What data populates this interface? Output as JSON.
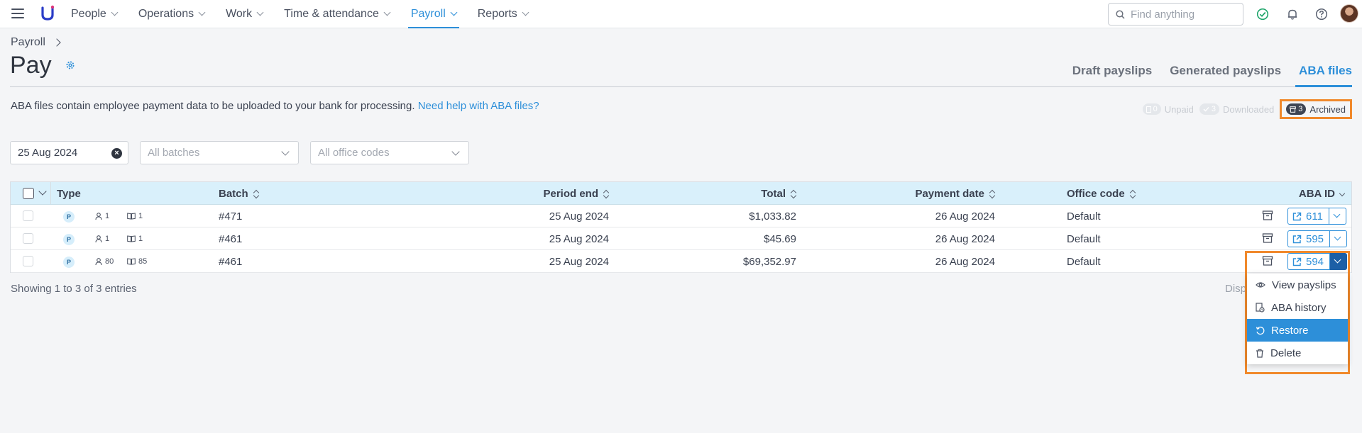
{
  "nav": {
    "items": [
      {
        "label": "People",
        "active": false
      },
      {
        "label": "Operations",
        "active": false
      },
      {
        "label": "Work",
        "active": false
      },
      {
        "label": "Time & attendance",
        "active": false
      },
      {
        "label": "Payroll",
        "active": true
      },
      {
        "label": "Reports",
        "active": false
      }
    ],
    "search_placeholder": "Find anything",
    "accent": "#2d8fd9"
  },
  "header": {
    "breadcrumb": "Payroll",
    "title": "Pay",
    "tabs": [
      {
        "label": "Draft payslips",
        "active": false
      },
      {
        "label": "Generated payslips",
        "active": false
      },
      {
        "label": "ABA files",
        "active": true
      }
    ]
  },
  "description": {
    "text": "ABA files contain employee payment data to be uploaded to your bank for processing. ",
    "link": "Need help with ABA files?"
  },
  "status": {
    "unpaid": {
      "count": "0",
      "label": "Unpaid"
    },
    "downloaded": {
      "count": "3",
      "label": "Downloaded"
    },
    "archived": {
      "count": "3",
      "label": "Archived"
    }
  },
  "filters": {
    "date": "25 Aug 2024",
    "batches_placeholder": "All batches",
    "office_codes_placeholder": "All office codes"
  },
  "table": {
    "headers": {
      "type": "Type",
      "batch": "Batch",
      "period_end": "Period end",
      "total": "Total",
      "payment_date": "Payment date",
      "office_code": "Office code",
      "aba_id": "ABA ID"
    },
    "rows": [
      {
        "type": "P",
        "people": "1",
        "payslips": "1",
        "batch": "#471",
        "period_end": "25 Aug 2024",
        "total": "$1,033.82",
        "payment_date": "26 Aug 2024",
        "office_code": "Default",
        "aba_id": "611"
      },
      {
        "type": "P",
        "people": "1",
        "payslips": "1",
        "batch": "#461",
        "period_end": "25 Aug 2024",
        "total": "$45.69",
        "payment_date": "26 Aug 2024",
        "office_code": "Default",
        "aba_id": "595"
      },
      {
        "type": "P",
        "people": "80",
        "payslips": "85",
        "batch": "#461",
        "period_end": "25 Aug 2024",
        "total": "$69,352.97",
        "payment_date": "26 Aug 2024",
        "office_code": "Default",
        "aba_id": "594"
      }
    ],
    "showing": "Showing 1 to 3 of 3 entries",
    "display_partial": "Disp"
  },
  "dropdown_menu": {
    "items": [
      {
        "label": "View payslips",
        "icon": "eye-icon",
        "active": false
      },
      {
        "label": "ABA history",
        "icon": "history-icon",
        "active": false
      },
      {
        "label": "Restore",
        "icon": "restore-icon",
        "active": true
      },
      {
        "label": "Delete",
        "icon": "trash-icon",
        "active": false
      }
    ]
  },
  "colors": {
    "accent": "#2d8fd9",
    "highlight": "#f0892c",
    "table_header": "#d9f0fb"
  }
}
